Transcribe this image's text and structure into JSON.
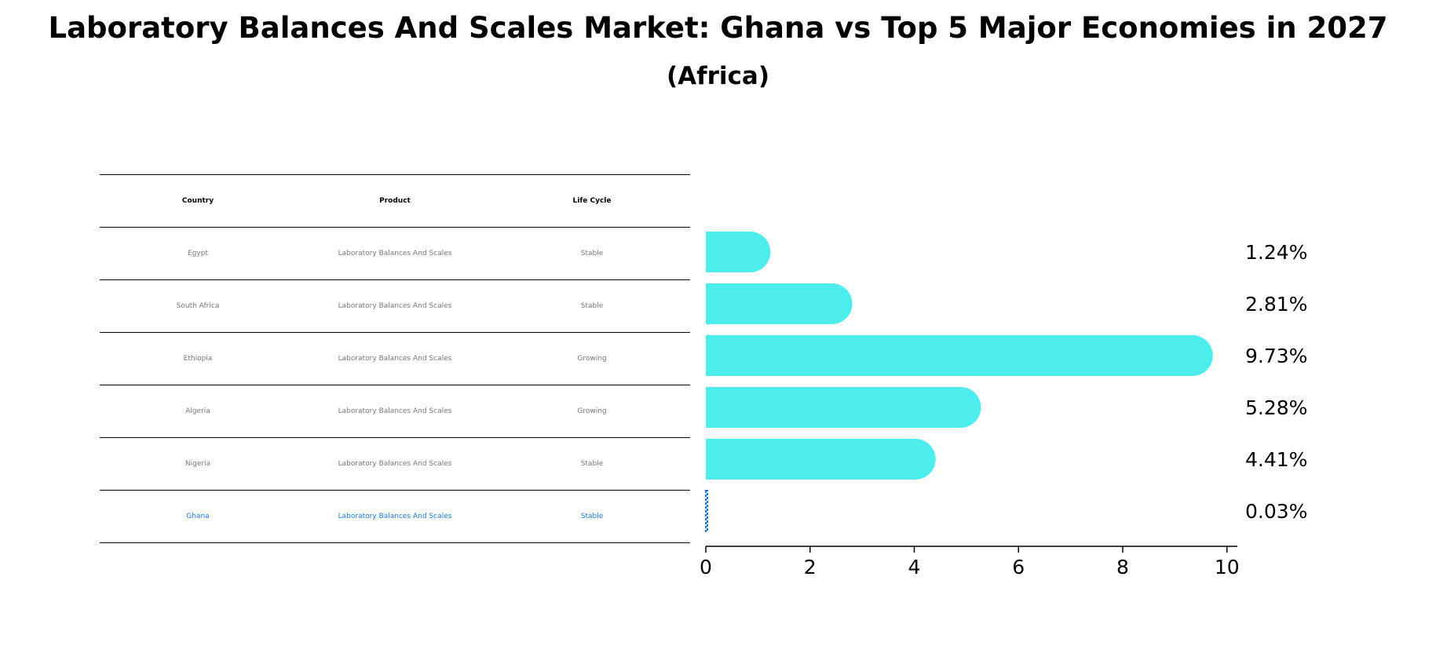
{
  "chart_data": {
    "type": "bar",
    "orientation": "horizontal",
    "title": "Laboratory Balances And Scales Market: Ghana vs Top 5 Major Economies in 2027",
    "subtitle": "(Africa)",
    "categories": [
      "Egypt",
      "South Africa",
      "Ethiopia",
      "Algeria",
      "Nigeria",
      "Ghana"
    ],
    "values": [
      1.24,
      2.81,
      9.73,
      5.28,
      4.41,
      0.03
    ],
    "value_labels": [
      "1.24%",
      "2.81%",
      "9.73%",
      "5.28%",
      "4.41%",
      "0.03%"
    ],
    "xlim": [
      0,
      10.2
    ],
    "xticks": [
      0,
      2,
      4,
      6,
      8,
      10
    ],
    "xtick_labels": [
      "0",
      "2",
      "4",
      "6",
      "8",
      "10"
    ],
    "xlabel": "",
    "ylabel": "",
    "grid": false,
    "highlight": "Ghana",
    "bar_color": "#4dedee",
    "highlight_color": "#1f77d4"
  },
  "table": {
    "headers": [
      "Country",
      "Product",
      "Life Cycle"
    ],
    "rows": [
      [
        "Egypt",
        "Laboratory Balances And Scales",
        "Stable"
      ],
      [
        "South Africa",
        "Laboratory Balances And Scales",
        "Stable"
      ],
      [
        "Ethiopia",
        "Laboratory Balances And Scales",
        "Growing"
      ],
      [
        "Algeria",
        "Laboratory Balances And Scales",
        "Growing"
      ],
      [
        "Nigeria",
        "Laboratory Balances And Scales",
        "Stable"
      ],
      [
        "Ghana",
        "Laboratory Balances And Scales",
        "Stable"
      ]
    ]
  }
}
